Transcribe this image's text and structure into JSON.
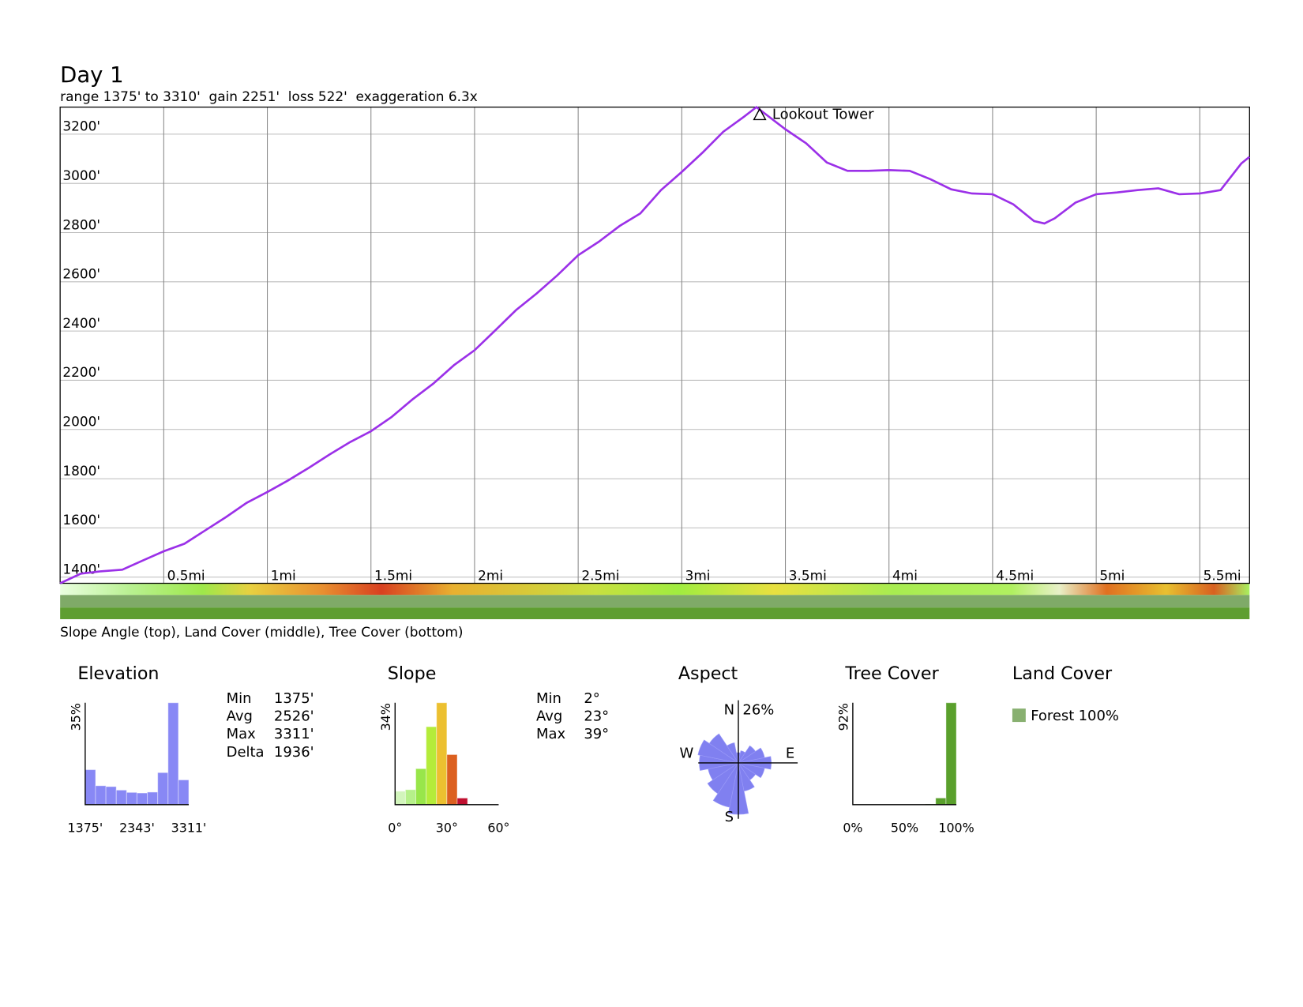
{
  "chart_data": [
    {
      "type": "line",
      "title": "Day 1",
      "subtitle": "range 1375' to 3310'  gain 2251'  loss 522'  exaggeration 6.3x",
      "x": [
        0,
        0.1,
        0.2,
        0.3,
        0.4,
        0.5,
        0.6,
        0.7,
        0.8,
        0.9,
        1.0,
        1.1,
        1.2,
        1.3,
        1.4,
        1.5,
        1.6,
        1.7,
        1.8,
        1.9,
        2.0,
        2.1,
        2.2,
        2.3,
        2.4,
        2.5,
        2.6,
        2.7,
        2.8,
        2.9,
        3.0,
        3.1,
        3.2,
        3.3,
        3.36,
        3.5,
        3.6,
        3.7,
        3.8,
        3.9,
        4.0,
        4.1,
        4.2,
        4.3,
        4.4,
        4.5,
        4.6,
        4.7,
        4.75,
        4.8,
        4.9,
        5.0,
        5.1,
        5.2,
        5.3,
        5.4,
        5.5,
        5.6,
        5.7,
        5.74
      ],
      "values": [
        1375,
        1414,
        1424,
        1430,
        1468,
        1505,
        1536,
        1590,
        1644,
        1702,
        1746,
        1793,
        1844,
        1898,
        1949,
        1993,
        2051,
        2122,
        2186,
        2261,
        2322,
        2403,
        2485,
        2553,
        2627,
        2708,
        2763,
        2827,
        2878,
        2973,
        3047,
        3125,
        3210,
        3271,
        3310,
        3220,
        3163,
        3085,
        3051,
        3051,
        3054,
        3051,
        3017,
        2976,
        2959,
        2956,
        2915,
        2847,
        2837,
        2858,
        2922,
        2956,
        2963,
        2973,
        2980,
        2956,
        2959,
        2973,
        3081,
        3108
      ],
      "color": "#9b30e8",
      "annotation": {
        "text": "Lookout Tower",
        "x": 3.36,
        "y": 3310
      },
      "xlim": [
        0,
        5.74
      ],
      "ylim": [
        1375,
        3310
      ],
      "xticks": [
        {
          "value": 0.5,
          "label": "0.5mi"
        },
        {
          "value": 1,
          "label": "1mi"
        },
        {
          "value": 1.5,
          "label": "1.5mi"
        },
        {
          "value": 2,
          "label": "2mi"
        },
        {
          "value": 2.5,
          "label": "2.5mi"
        },
        {
          "value": 3,
          "label": "3mi"
        },
        {
          "value": 3.5,
          "label": "3.5mi"
        },
        {
          "value": 4,
          "label": "4mi"
        },
        {
          "value": 4.5,
          "label": "4.5mi"
        },
        {
          "value": 5,
          "label": "5mi"
        },
        {
          "value": 5.5,
          "label": "5.5mi"
        }
      ],
      "yticks": [
        {
          "value": 1400,
          "label": "1400'"
        },
        {
          "value": 1600,
          "label": "1600'"
        },
        {
          "value": 1800,
          "label": "1800'"
        },
        {
          "value": 2000,
          "label": "2000'"
        },
        {
          "value": 2200,
          "label": "2200'"
        },
        {
          "value": 2400,
          "label": "2400'"
        },
        {
          "value": 2600,
          "label": "2600'"
        },
        {
          "value": 2800,
          "label": "2800'"
        },
        {
          "value": 3000,
          "label": "3000'"
        },
        {
          "value": 3200,
          "label": "3200'"
        }
      ],
      "grid": true,
      "caption": "Slope Angle (top), Land Cover (middle), Tree Cover (bottom)"
    },
    {
      "type": "histogram",
      "title": "Elevation",
      "bins": [
        1375,
        1568.6,
        1762.2,
        1955.8,
        2149.4,
        2343,
        2536.6,
        2730.2,
        2923.8,
        3117.4,
        3311
      ],
      "values": [
        12,
        6.5,
        6.2,
        5,
        4.2,
        4,
        4.3,
        11,
        35,
        8.5
      ],
      "color": "#8888f5",
      "xlim": [
        1375,
        3311
      ],
      "ylim": [
        0,
        35
      ],
      "xticks": [
        {
          "value": 1375,
          "label": "1375'"
        },
        {
          "value": 2343,
          "label": "2343'"
        },
        {
          "value": 3311,
          "label": "3311'"
        }
      ],
      "yticks": [
        {
          "value": 35,
          "label": "35%"
        }
      ],
      "stats": [
        {
          "label": "Min",
          "value": "1375'"
        },
        {
          "label": "Avg",
          "value": "2526'"
        },
        {
          "label": "Max",
          "value": "3311'"
        },
        {
          "label": "Delta",
          "value": "1936'"
        }
      ]
    },
    {
      "type": "histogram",
      "title": "Slope",
      "bins": [
        0,
        6,
        12,
        18,
        24,
        30,
        36,
        42
      ],
      "values": [
        4.5,
        5,
        12,
        26,
        34,
        16.7,
        2.2
      ],
      "colors": [
        "#d2f5bc",
        "#b6f08a",
        "#98e64a",
        "#b4ec3a",
        "#ecc030",
        "#dc6020",
        "#c01030"
      ],
      "xlim": [
        0,
        60
      ],
      "ylim": [
        0,
        34
      ],
      "xticks": [
        {
          "value": 0,
          "label": "0°"
        },
        {
          "value": 30,
          "label": "30°"
        },
        {
          "value": 60,
          "label": "60°"
        }
      ],
      "yticks": [
        {
          "value": 34,
          "label": "34%"
        }
      ],
      "stats": [
        {
          "label": "Min",
          "value": "2°"
        },
        {
          "label": "Avg",
          "value": "23°"
        },
        {
          "label": "Max",
          "value": "39°"
        }
      ]
    },
    {
      "type": "polar_bar",
      "title": "Aspect",
      "categories": [
        "N",
        null,
        null,
        null,
        "E",
        null,
        null,
        null,
        "S",
        null,
        null,
        null,
        "W",
        null,
        null,
        null
      ],
      "values": [
        5,
        6,
        10,
        13,
        16,
        13,
        10,
        14,
        25,
        22,
        18,
        15,
        19,
        20,
        17,
        10
      ],
      "color": "#8080f0",
      "rlim": [
        0,
        26
      ],
      "rticks": [
        {
          "value": 26,
          "label": "26%"
        }
      ]
    },
    {
      "type": "histogram",
      "title": "Tree Cover",
      "bins": [
        0,
        10,
        20,
        30,
        40,
        50,
        60,
        70,
        80,
        90,
        100
      ],
      "values": [
        0,
        0,
        0,
        0,
        0,
        0,
        0,
        0.5,
        6,
        92
      ],
      "color": "#5aa02c",
      "xlim": [
        0,
        100
      ],
      "ylim": [
        0,
        92
      ],
      "xticks": [
        {
          "value": 0,
          "label": "0%"
        },
        {
          "value": 50,
          "label": "50%"
        },
        {
          "value": 100,
          "label": "100%"
        }
      ],
      "yticks": [
        {
          "value": 92,
          "label": "92%"
        }
      ]
    },
    {
      "type": "legend",
      "title": "Land Cover",
      "categories": [
        "Forest"
      ],
      "values": [
        100
      ],
      "value_labels": [
        "100%"
      ],
      "colors": [
        "#88b070"
      ]
    }
  ]
}
